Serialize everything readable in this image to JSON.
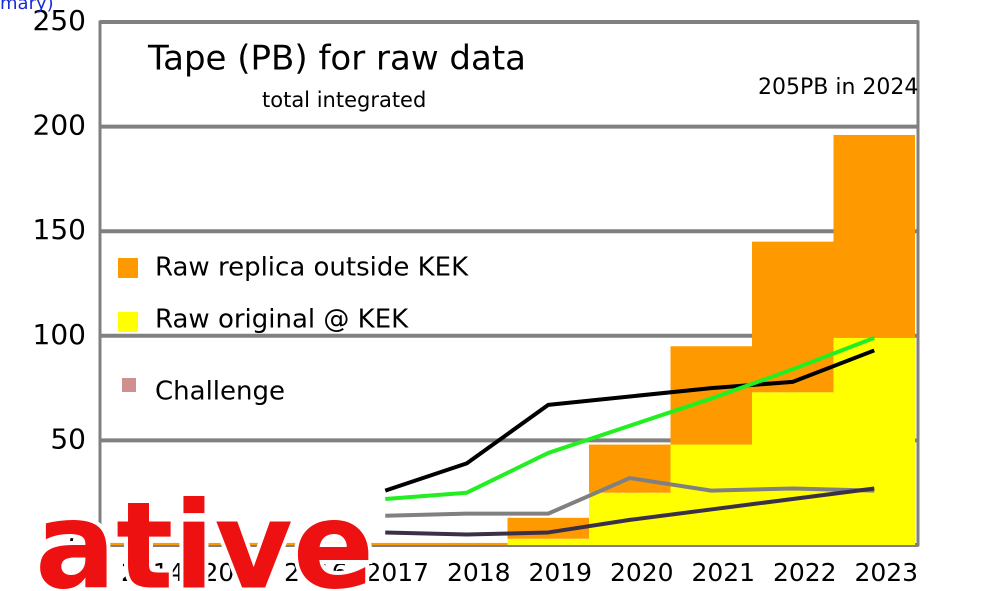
{
  "chart_data": {
    "type": "bar",
    "title": "Tape (PB) for raw data",
    "subtitle": "total integrated",
    "annotations": [
      "205PB in 2024",
      "mary)",
      "ative"
    ],
    "categories": [
      "2014",
      "2015",
      "2016",
      "2017",
      "2018",
      "2019",
      "2020",
      "2021",
      "2022",
      "2023"
    ],
    "series": [
      {
        "name": "Raw original @ KEK",
        "type": "bar",
        "color": "#ffff00",
        "values": [
          0,
          0,
          0,
          0,
          0,
          3,
          25,
          48,
          73,
          99
        ]
      },
      {
        "name": "Raw replica outside KEK",
        "type": "bar",
        "color": "#ff9900",
        "values": [
          1,
          1,
          1,
          1,
          1,
          10,
          23,
          47,
          72,
          97
        ]
      },
      {
        "type": "line",
        "color": "#000000",
        "values": [
          null,
          null,
          null,
          26,
          39,
          67,
          71,
          75,
          78,
          93
        ]
      },
      {
        "type": "line",
        "color": "#22ee22",
        "values": [
          null,
          null,
          null,
          22,
          25,
          44,
          57,
          70,
          84,
          99
        ]
      },
      {
        "name": "Challenge",
        "type": "line",
        "color": "#808080",
        "legend_color": "#d09090",
        "values": [
          null,
          null,
          null,
          14,
          15,
          15,
          32,
          26,
          27,
          26
        ]
      },
      {
        "type": "line",
        "color": "#3a3048",
        "values": [
          null,
          null,
          null,
          6,
          5,
          6,
          12,
          17,
          22,
          27
        ]
      }
    ],
    "ylim": [
      0,
      250
    ],
    "yticks": [
      0,
      50,
      100,
      150,
      200,
      250
    ],
    "grid": true
  }
}
